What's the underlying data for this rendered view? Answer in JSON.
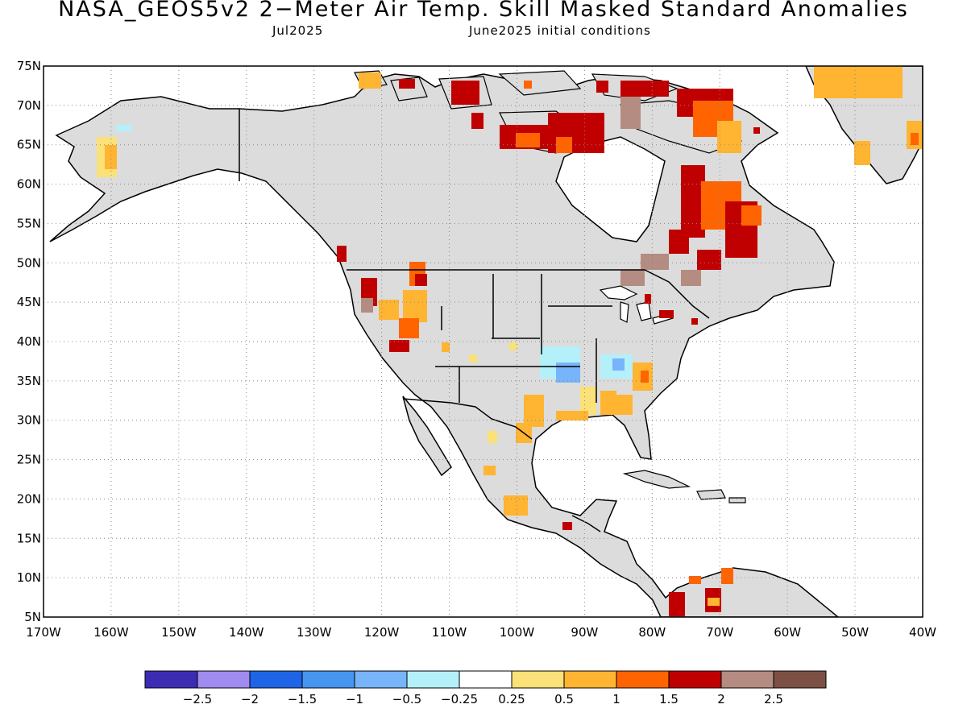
{
  "title": "NASA_GEOS5v2 2−Meter Air Temp. Skill Masked Standard Anomalies",
  "valid_month": "Jul2025",
  "initial_conditions": "June2025 initial conditions",
  "map": {
    "lat_labels": [
      "75N",
      "70N",
      "65N",
      "60N",
      "55N",
      "50N",
      "45N",
      "40N",
      "35N",
      "30N",
      "25N",
      "20N",
      "15N",
      "10N",
      "5N"
    ],
    "lon_labels": [
      "170W",
      "160W",
      "150W",
      "140W",
      "130W",
      "120W",
      "110W",
      "100W",
      "90W",
      "80W",
      "70W",
      "60W",
      "50W",
      "40W"
    ],
    "land_color": "#dcdcdc",
    "ocean_color": "#ffffff",
    "grid": "dotted"
  },
  "colorbar": {
    "colors": [
      "#3c2cb4",
      "#a08cf0",
      "#1e64e6",
      "#4696f0",
      "#78b4fa",
      "#b4f0fa",
      "#ffffff",
      "#fae178",
      "#ffb432",
      "#ff6400",
      "#c00000",
      "#b48c82",
      "#7d5046"
    ],
    "labels": [
      "−2.5",
      "−2",
      "−1.5",
      "−1",
      "−0.5",
      "−0.25",
      "0.25",
      "0.5",
      "1",
      "1.5",
      "2",
      "2.5"
    ]
  }
}
